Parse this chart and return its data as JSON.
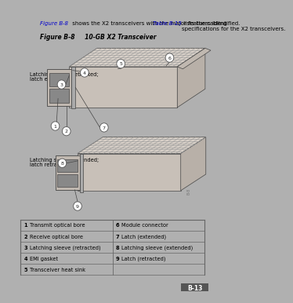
{
  "bg_color": "#ffffff",
  "page_bg": "#b0b0b0",
  "content_bg": "#ffffff",
  "intro_text_plain": " shows the X2 transceivers with the major features identified. ",
  "intro_link1": "Figure B-8",
  "intro_link2": "Table B-15",
  "intro_suffix": " lists the cabling\nspecifications for the X2 transceivers.",
  "figure_label": "Figure B-8",
  "figure_title": "     10-GB X2 Transceiver",
  "label1_line1": "Latching sleeve retracted;",
  "label1_line2": "latch extended",
  "label2_line1": "Latching sleeve extended;",
  "label2_line2": "latch retracted",
  "table_rows": [
    [
      "1",
      "Transmit optical bore",
      "6",
      "Module connector"
    ],
    [
      "2",
      "Receive optical bore",
      "7",
      "Latch (extended)"
    ],
    [
      "3",
      "Latching sleeve (retracted)",
      "8",
      "Latching sleeve (extended)"
    ],
    [
      "4",
      "EMI gasket",
      "9",
      "Latch (retracted)"
    ],
    [
      "5",
      "Transceiver heat sink",
      "",
      ""
    ]
  ],
  "page_number": "B-13",
  "top_color": "#d8d0c8",
  "side_color": "#b8b0a8",
  "front_color": "#c8c0b8",
  "connector_face_color": "#c0b8b0",
  "connector_port_color": "#888888",
  "edge_color": "#444444",
  "hatch_color": "#999999",
  "line_color": "#777777",
  "text_color": "#000000",
  "link_color": "#0000cc",
  "table_border_color": "#888888",
  "callout_fill": "#ffffff",
  "callout_edge": "#555555"
}
